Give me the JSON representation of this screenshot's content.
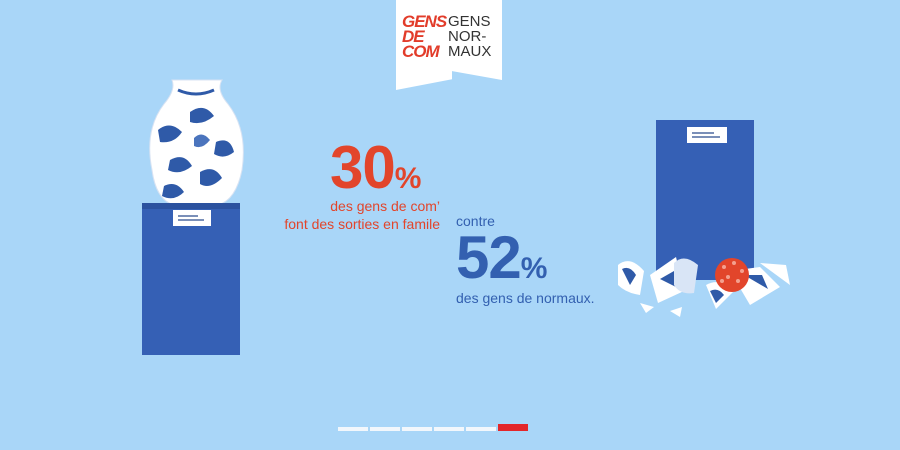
{
  "logo": {
    "left_lines": [
      "GENS",
      "DE",
      "COM"
    ],
    "right_lines": [
      "GENS",
      "NOR-",
      "MAUX"
    ]
  },
  "stats": {
    "first": {
      "value": "30",
      "unit": "%",
      "line1": "des gens de com’",
      "line2": "font des sorties en famile"
    },
    "connector": "contre",
    "second": {
      "value": "52",
      "unit": "%",
      "line1": "des gens de normaux."
    }
  },
  "progress": {
    "total": 6,
    "current": 6
  },
  "colors": {
    "background": "#a9d6f8",
    "accent_red": "#e2452b",
    "accent_blue": "#3360b0",
    "pedestal": "#3560b5"
  }
}
